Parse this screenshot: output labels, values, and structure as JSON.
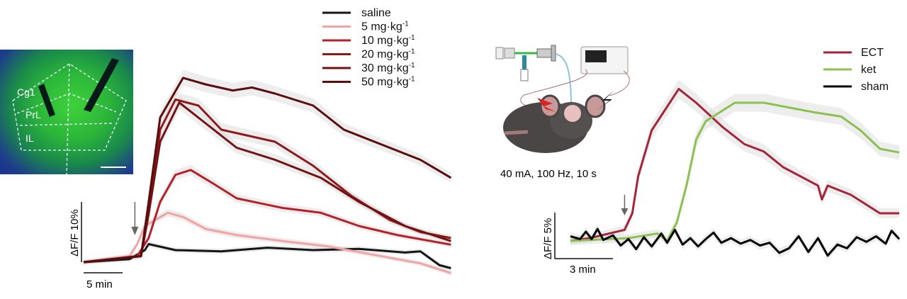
{
  "left_panel": {
    "image_labels": [
      "Cg1",
      "PrL",
      "IL"
    ],
    "scale_x": "5 min",
    "scale_y": "ΔF/F 10%"
  },
  "right_panel": {
    "stim_params": "40 mA,  100 Hz,  10 s",
    "scale_x": "3 min",
    "scale_y": "ΔF/F 5%"
  },
  "chart_data": [
    {
      "type": "line",
      "xlabel": "",
      "ylabel": "",
      "x_units": "min",
      "y_units": "% ΔF/F",
      "xlim": [
        0,
        48
      ],
      "ylim": [
        -3,
        32
      ],
      "injection_arrow_x": 6.7,
      "legend": "top-right",
      "series": [
        {
          "name": "saline",
          "color": "#151515",
          "points": [
            [
              0,
              0
            ],
            [
              6,
              0.5
            ],
            [
              8,
              2
            ],
            [
              8.5,
              3
            ],
            [
              12,
              2
            ],
            [
              18,
              1.8
            ],
            [
              24,
              2.4
            ],
            [
              30,
              2
            ],
            [
              36,
              2.2
            ],
            [
              42,
              1.6
            ],
            [
              44,
              1.8
            ],
            [
              46.5,
              -0.5
            ],
            [
              48,
              -1
            ]
          ]
        },
        {
          "name": "5 mg·kg-1",
          "color": "#f2a4a4",
          "points": [
            [
              0,
              0
            ],
            [
              6,
              1
            ],
            [
              7,
              3
            ],
            [
              8,
              6
            ],
            [
              11,
              8.2
            ],
            [
              13,
              7.5
            ],
            [
              16,
              5.5
            ],
            [
              20,
              4.5
            ],
            [
              26,
              3.5
            ],
            [
              32,
              2.6
            ],
            [
              38,
              1.2
            ],
            [
              44,
              -0.2
            ],
            [
              48,
              -1.8
            ]
          ]
        },
        {
          "name": "10 mg·kg-1",
          "color": "#b4212b",
          "points": [
            [
              0,
              0
            ],
            [
              7,
              1
            ],
            [
              8.5,
              4
            ],
            [
              10,
              10
            ],
            [
              12,
              14.5
            ],
            [
              14,
              15.3
            ],
            [
              17,
              13
            ],
            [
              20,
              10.6
            ],
            [
              26,
              9
            ],
            [
              31,
              8.2
            ],
            [
              36,
              6
            ],
            [
              41,
              4.5
            ],
            [
              48,
              2.9
            ]
          ]
        },
        {
          "name": "20 mg·kg-1",
          "color": "#8e1a1e",
          "points": [
            [
              0,
              0
            ],
            [
              7.5,
              1
            ],
            [
              8.5,
              8
            ],
            [
              10,
              22
            ],
            [
              12,
              27
            ],
            [
              15,
              26
            ],
            [
              18,
              22
            ],
            [
              25,
              20
            ],
            [
              30,
              16
            ],
            [
              35,
              11
            ],
            [
              40,
              7
            ],
            [
              44,
              5
            ],
            [
              48,
              4
            ]
          ]
        },
        {
          "name": "30 mg·kg-1",
          "color": "#721214",
          "points": [
            [
              0,
              0
            ],
            [
              7.5,
              1
            ],
            [
              8.5,
              8
            ],
            [
              10,
              20
            ],
            [
              12.5,
              26.5
            ],
            [
              15,
              24
            ],
            [
              20,
              19
            ],
            [
              25,
              17
            ],
            [
              31,
              14
            ],
            [
              36,
              10
            ],
            [
              42,
              6
            ],
            [
              48,
              3.5
            ]
          ]
        },
        {
          "name": "50 mg·kg-1",
          "color": "#5a0c0e",
          "points": [
            [
              0,
              0
            ],
            [
              7.5,
              1
            ],
            [
              8.5,
              10
            ],
            [
              10,
              24
            ],
            [
              13,
              30.6
            ],
            [
              16,
              29.5
            ],
            [
              19.5,
              28.5
            ],
            [
              22,
              29
            ],
            [
              25,
              28
            ],
            [
              30,
              26
            ],
            [
              34,
              22
            ],
            [
              40,
              19
            ],
            [
              44,
              17
            ],
            [
              48,
              14
            ]
          ]
        }
      ]
    },
    {
      "type": "line",
      "xlabel": "",
      "ylabel": "",
      "x_units": "min",
      "y_units": "% ΔF/F",
      "xlim": [
        0,
        17
      ],
      "ylim": [
        -3,
        18
      ],
      "stim_arrow_x": 2.8,
      "legend": "top-right",
      "series": [
        {
          "name": "ECT",
          "color": "#a3243b",
          "points": [
            [
              0,
              0
            ],
            [
              1,
              0.3
            ],
            [
              2,
              0.8
            ],
            [
              2.8,
              1.2
            ],
            [
              3.2,
              3
            ],
            [
              3.5,
              7
            ],
            [
              4.2,
              12
            ],
            [
              5.6,
              16.5
            ],
            [
              6.5,
              15
            ],
            [
              7.9,
              12.3
            ],
            [
              9,
              10.5
            ],
            [
              10,
              9.7
            ],
            [
              11,
              8
            ],
            [
              12.8,
              6
            ],
            [
              13,
              4.5
            ],
            [
              13.3,
              6
            ],
            [
              14.5,
              5
            ],
            [
              16,
              3
            ],
            [
              17,
              3
            ]
          ]
        },
        {
          "name": "ket",
          "color": "#8cc152",
          "points": [
            [
              0,
              0
            ],
            [
              3,
              0.3
            ],
            [
              4.5,
              0.8
            ],
            [
              5,
              0
            ],
            [
              5.5,
              2
            ],
            [
              6,
              6
            ],
            [
              6.5,
              11
            ],
            [
              7,
              13
            ],
            [
              8.5,
              15
            ],
            [
              10,
              15
            ],
            [
              12.5,
              14
            ],
            [
              14,
              13.5
            ],
            [
              15,
              12
            ],
            [
              16,
              10
            ],
            [
              17,
              9.6
            ]
          ]
        },
        {
          "name": "sham",
          "color": "#000000",
          "points": [
            [
              0,
              0.5
            ],
            [
              0.5,
              0.2
            ],
            [
              0.8,
              1
            ],
            [
              1.1,
              0.2
            ],
            [
              1.4,
              1.3
            ],
            [
              1.7,
              0.1
            ],
            [
              2.2,
              0.6
            ],
            [
              2.6,
              -0.5
            ],
            [
              3,
              0.2
            ],
            [
              3.4,
              -0.9
            ],
            [
              3.8,
              0.4
            ],
            [
              4.2,
              -0.6
            ],
            [
              4.7,
              0.8
            ],
            [
              5,
              -0.2
            ],
            [
              5.4,
              1.2
            ],
            [
              5.8,
              -0.4
            ],
            [
              6.2,
              0.3
            ],
            [
              6.6,
              -0.6
            ],
            [
              7,
              0.2
            ],
            [
              7.4,
              0.9
            ],
            [
              7.8,
              -0.2
            ],
            [
              8.3,
              0.3
            ],
            [
              8.8,
              -0.3
            ],
            [
              9.3,
              0.1
            ],
            [
              9.8,
              -0.5
            ],
            [
              10.3,
              -0.2
            ],
            [
              10.8,
              -1.3
            ],
            [
              11.3,
              -0.8
            ],
            [
              11.8,
              0.5
            ],
            [
              12.3,
              -1.2
            ],
            [
              12.8,
              0.3
            ],
            [
              13.3,
              -1.6
            ],
            [
              13.8,
              -0.4
            ],
            [
              14.3,
              -0.8
            ],
            [
              14.8,
              0.4
            ],
            [
              15.3,
              -0.1
            ],
            [
              15.8,
              0.5
            ],
            [
              16.3,
              -0.3
            ],
            [
              16.6,
              1.1
            ],
            [
              17,
              0.2
            ]
          ]
        }
      ]
    }
  ]
}
